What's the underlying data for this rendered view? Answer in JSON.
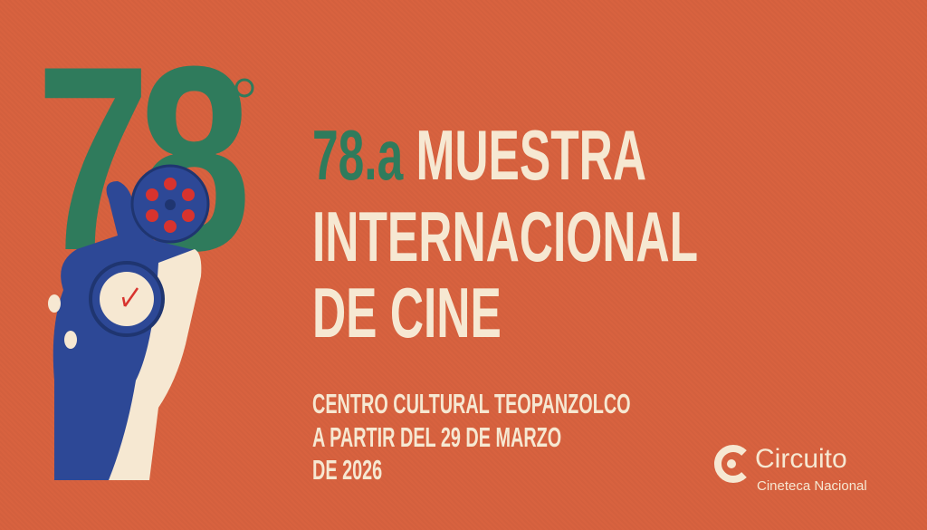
{
  "logo_number": "78",
  "title": {
    "ordinal": "78.a",
    "line1": "MUESTRA",
    "line2": "INTERNACIONAL",
    "line3": "DE CINE"
  },
  "details": {
    "venue": "CENTRO CULTURAL TEOPANZOLCO",
    "date_line1": "A PARTIR DEL 29 DE MARZO",
    "date_line2": "DE 2026"
  },
  "sponsor": {
    "name": "Circuito",
    "org": "Cineteca Nacional"
  },
  "colors": {
    "background": "#d8623f",
    "green": "#2f7b5c",
    "cream": "#f6e8d2",
    "blue": "#2d4896",
    "red": "#d8332e"
  }
}
